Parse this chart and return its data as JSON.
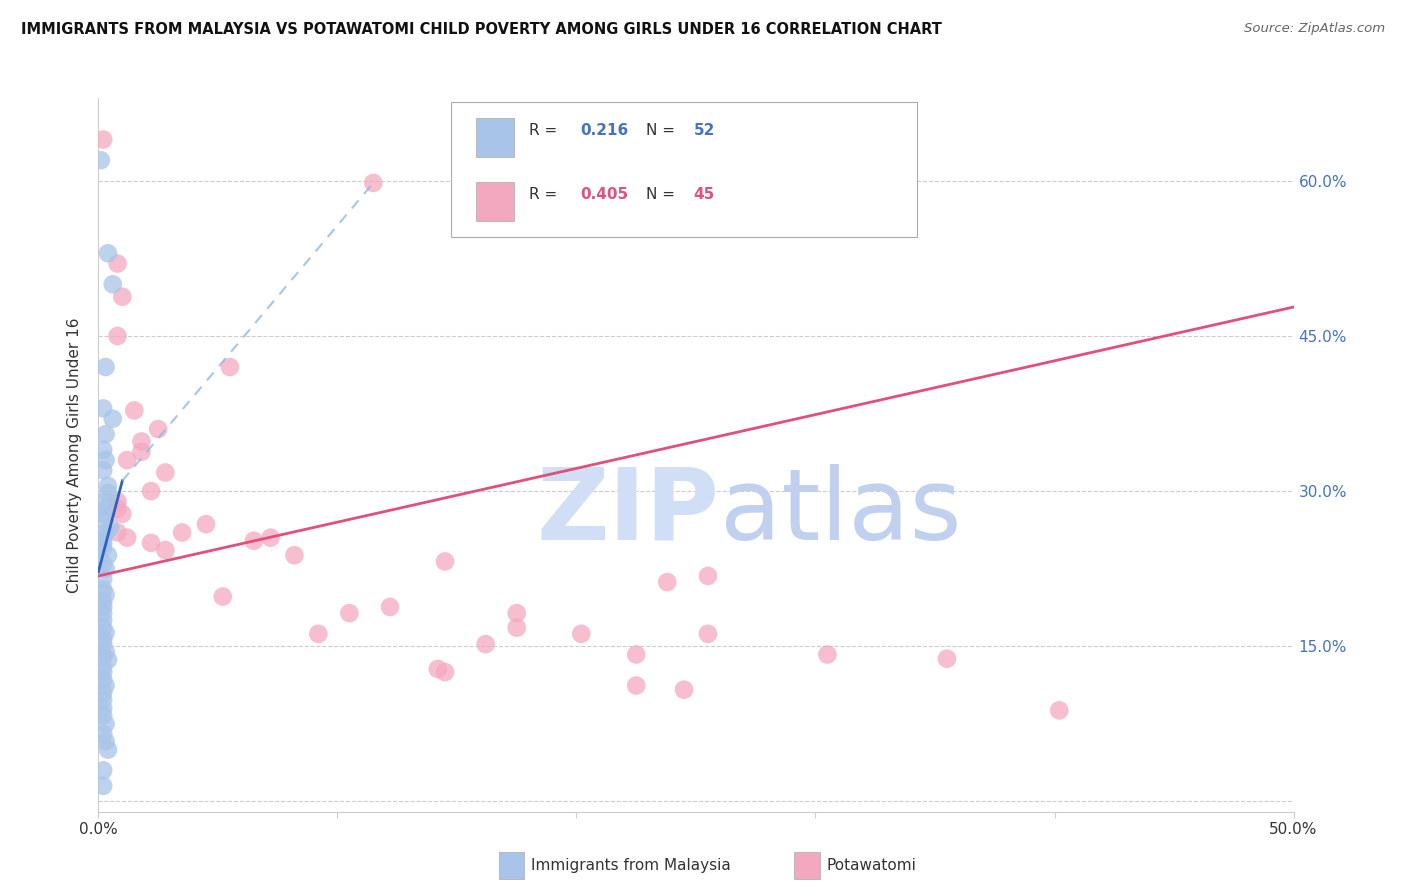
{
  "title": "IMMIGRANTS FROM MALAYSIA VS POTAWATOMI CHILD POVERTY AMONG GIRLS UNDER 16 CORRELATION CHART",
  "source": "Source: ZipAtlas.com",
  "ylabel": "Child Poverty Among Girls Under 16",
  "xlim": [
    0.0,
    0.5
  ],
  "ylim": [
    -0.01,
    0.68
  ],
  "yticks": [
    0.0,
    0.15,
    0.3,
    0.45,
    0.6
  ],
  "xticks": [
    0.0,
    0.1,
    0.2,
    0.3,
    0.4,
    0.5
  ],
  "blue_color": "#a8c4e8",
  "pink_color": "#f4a8bf",
  "blue_line_color": "#3060c0",
  "pink_line_color": "#e0507a",
  "blue_dash_color": "#90b8e0",
  "R_blue": "0.216",
  "N_blue": "52",
  "R_pink": "0.405",
  "N_pink": "45",
  "blue_scatter": [
    [
      0.001,
      0.62
    ],
    [
      0.004,
      0.53
    ],
    [
      0.006,
      0.5
    ],
    [
      0.003,
      0.42
    ],
    [
      0.002,
      0.38
    ],
    [
      0.006,
      0.37
    ],
    [
      0.003,
      0.355
    ],
    [
      0.002,
      0.34
    ],
    [
      0.003,
      0.33
    ],
    [
      0.002,
      0.32
    ],
    [
      0.004,
      0.305
    ],
    [
      0.004,
      0.298
    ],
    [
      0.003,
      0.29
    ],
    [
      0.003,
      0.283
    ],
    [
      0.002,
      0.278
    ],
    [
      0.002,
      0.272
    ],
    [
      0.005,
      0.265
    ],
    [
      0.003,
      0.26
    ],
    [
      0.002,
      0.255
    ],
    [
      0.002,
      0.25
    ],
    [
      0.002,
      0.245
    ],
    [
      0.004,
      0.238
    ],
    [
      0.002,
      0.23
    ],
    [
      0.003,
      0.225
    ],
    [
      0.002,
      0.215
    ],
    [
      0.002,
      0.205
    ],
    [
      0.003,
      0.2
    ],
    [
      0.002,
      0.193
    ],
    [
      0.002,
      0.188
    ],
    [
      0.002,
      0.182
    ],
    [
      0.002,
      0.175
    ],
    [
      0.002,
      0.168
    ],
    [
      0.003,
      0.163
    ],
    [
      0.002,
      0.157
    ],
    [
      0.002,
      0.152
    ],
    [
      0.003,
      0.145
    ],
    [
      0.002,
      0.14
    ],
    [
      0.004,
      0.137
    ],
    [
      0.002,
      0.13
    ],
    [
      0.002,
      0.125
    ],
    [
      0.002,
      0.118
    ],
    [
      0.003,
      0.112
    ],
    [
      0.002,
      0.105
    ],
    [
      0.002,
      0.098
    ],
    [
      0.002,
      0.09
    ],
    [
      0.002,
      0.083
    ],
    [
      0.003,
      0.075
    ],
    [
      0.002,
      0.065
    ],
    [
      0.003,
      0.058
    ],
    [
      0.004,
      0.05
    ],
    [
      0.002,
      0.03
    ],
    [
      0.002,
      0.015
    ]
  ],
  "pink_scatter": [
    [
      0.002,
      0.64
    ],
    [
      0.115,
      0.598
    ],
    [
      0.008,
      0.52
    ],
    [
      0.01,
      0.488
    ],
    [
      0.008,
      0.45
    ],
    [
      0.055,
      0.42
    ],
    [
      0.015,
      0.378
    ],
    [
      0.025,
      0.36
    ],
    [
      0.018,
      0.348
    ],
    [
      0.018,
      0.338
    ],
    [
      0.012,
      0.33
    ],
    [
      0.028,
      0.318
    ],
    [
      0.022,
      0.3
    ],
    [
      0.008,
      0.29
    ],
    [
      0.008,
      0.283
    ],
    [
      0.01,
      0.278
    ],
    [
      0.045,
      0.268
    ],
    [
      0.035,
      0.26
    ],
    [
      0.008,
      0.26
    ],
    [
      0.012,
      0.255
    ],
    [
      0.022,
      0.25
    ],
    [
      0.028,
      0.243
    ],
    [
      0.072,
      0.255
    ],
    [
      0.065,
      0.252
    ],
    [
      0.082,
      0.238
    ],
    [
      0.145,
      0.232
    ],
    [
      0.255,
      0.218
    ],
    [
      0.238,
      0.212
    ],
    [
      0.052,
      0.198
    ],
    [
      0.122,
      0.188
    ],
    [
      0.105,
      0.182
    ],
    [
      0.175,
      0.182
    ],
    [
      0.175,
      0.168
    ],
    [
      0.092,
      0.162
    ],
    [
      0.202,
      0.162
    ],
    [
      0.255,
      0.162
    ],
    [
      0.162,
      0.152
    ],
    [
      0.305,
      0.142
    ],
    [
      0.225,
      0.142
    ],
    [
      0.355,
      0.138
    ],
    [
      0.142,
      0.128
    ],
    [
      0.145,
      0.125
    ],
    [
      0.225,
      0.112
    ],
    [
      0.245,
      0.108
    ],
    [
      0.402,
      0.088
    ]
  ],
  "blue_solid_line": [
    [
      0.0,
      0.222
    ],
    [
      0.01,
      0.31
    ]
  ],
  "blue_dash_line": [
    [
      0.01,
      0.31
    ],
    [
      0.115,
      0.598
    ]
  ],
  "pink_line": [
    [
      0.0,
      0.218
    ],
    [
      0.5,
      0.478
    ]
  ]
}
